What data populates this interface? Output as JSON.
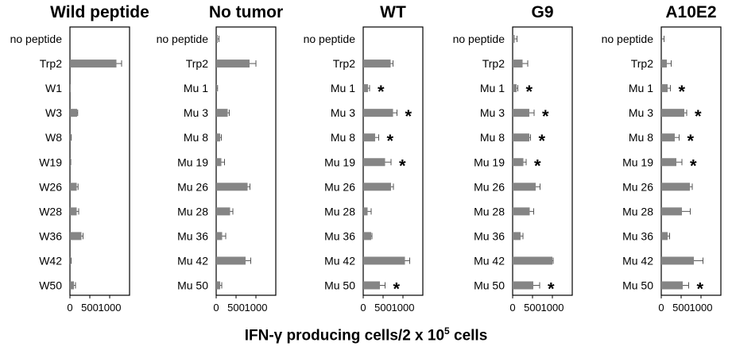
{
  "colors": {
    "bar": "#858585",
    "axis": "#000000",
    "errorbar": "#555555"
  },
  "xlabel": {
    "prefix": "IFN-",
    "gamma": "γ",
    "middle": " producing cells/2 x 10",
    "exponent": "5",
    "suffix": " cells"
  },
  "chart_data": [
    {
      "type": "bar",
      "orientation": "horizontal",
      "title": "Wild peptide",
      "categories": [
        "no peptide",
        "Trp2",
        "W1",
        "W3",
        "W8",
        "W19",
        "W26",
        "W28",
        "W36",
        "W42",
        "W50"
      ],
      "values": [
        0,
        1170,
        20,
        180,
        25,
        15,
        170,
        170,
        290,
        20,
        100
      ],
      "errors": [
        0,
        130,
        0,
        15,
        8,
        5,
        35,
        50,
        40,
        10,
        40
      ],
      "significant": [
        false,
        false,
        false,
        false,
        false,
        false,
        false,
        false,
        false,
        false,
        false
      ],
      "xticks": [
        0,
        500,
        1000
      ],
      "xlim": [
        0,
        1500
      ]
    },
    {
      "type": "bar",
      "orientation": "horizontal",
      "title": "No tumor",
      "categories": [
        "no peptide",
        "Trp2",
        "Mu 1",
        "Mu 3",
        "Mu 8",
        "Mu 19",
        "Mu 26",
        "Mu 28",
        "Mu 36",
        "Mu 42",
        "Mu 50"
      ],
      "values": [
        40,
        840,
        20,
        290,
        100,
        130,
        790,
        350,
        150,
        740,
        100
      ],
      "errors": [
        30,
        160,
        15,
        40,
        30,
        80,
        60,
        70,
        90,
        130,
        40
      ],
      "significant": [
        false,
        false,
        false,
        false,
        false,
        false,
        false,
        false,
        false,
        false,
        false
      ],
      "xticks": [
        0,
        500,
        1000
      ],
      "xlim": [
        0,
        1500
      ]
    },
    {
      "type": "bar",
      "orientation": "horizontal",
      "title": "WT",
      "categories": [
        "no peptide",
        "Trp2",
        "Mu 1",
        "Mu 3",
        "Mu 8",
        "Mu 19",
        "Mu 26",
        "Mu 28",
        "Mu 36",
        "Mu 42",
        "Mu 50"
      ],
      "values": [
        0,
        690,
        120,
        750,
        300,
        550,
        700,
        110,
        200,
        1050,
        420
      ],
      "errors": [
        0,
        60,
        40,
        100,
        90,
        150,
        60,
        90,
        20,
        120,
        130
      ],
      "significant": [
        false,
        false,
        true,
        true,
        true,
        true,
        false,
        false,
        false,
        false,
        true
      ],
      "xticks": [
        0,
        500,
        1000
      ],
      "xlim": [
        0,
        1500
      ]
    },
    {
      "type": "bar",
      "orientation": "horizontal",
      "title": "G9",
      "categories": [
        "no peptide",
        "Trp2",
        "Mu 1",
        "Mu 3",
        "Mu 8",
        "Mu 19",
        "Mu 26",
        "Mu 28",
        "Mu 36",
        "Mu 42",
        "Mu 50"
      ],
      "values": [
        50,
        250,
        100,
        420,
        420,
        270,
        580,
        430,
        200,
        1000,
        520
      ],
      "errors": [
        60,
        130,
        30,
        120,
        30,
        70,
        110,
        100,
        60,
        20,
        160
      ],
      "significant": [
        false,
        false,
        true,
        true,
        true,
        true,
        false,
        false,
        false,
        false,
        true
      ],
      "xticks": [
        0,
        500,
        1000
      ],
      "xlim": [
        0,
        1500
      ]
    },
    {
      "type": "bar",
      "orientation": "horizontal",
      "title": "A10E2",
      "categories": [
        "no peptide",
        "Trp2",
        "Mu 1",
        "Mu 3",
        "Mu 8",
        "Mu 19",
        "Mu 26",
        "Mu 28",
        "Mu 36",
        "Mu 42",
        "Mu 50"
      ],
      "values": [
        0,
        140,
        160,
        580,
        340,
        380,
        720,
        520,
        160,
        820,
        540
      ],
      "errors": [
        70,
        110,
        70,
        60,
        110,
        140,
        60,
        210,
        50,
        230,
        150
      ],
      "significant": [
        false,
        false,
        true,
        true,
        true,
        true,
        false,
        false,
        false,
        false,
        true
      ],
      "xticks": [
        0,
        500,
        1000
      ],
      "xlim": [
        0,
        1500
      ]
    }
  ]
}
